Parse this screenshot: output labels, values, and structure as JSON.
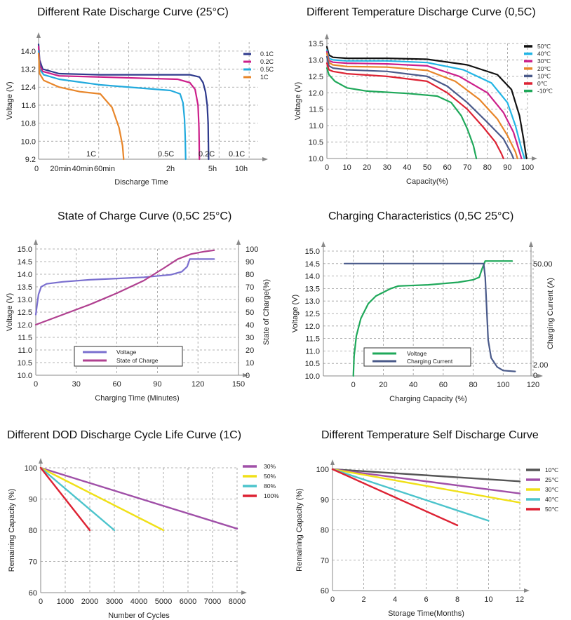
{
  "chart_data": [
    {
      "type": "line",
      "title": "Different Rate Discharge Curve (25°C)",
      "ylabel": "Voltage (V)",
      "xlabel": "Discharge Time",
      "ylim": [
        9.2,
        14.4
      ],
      "y_ticks": [
        "9.2",
        "10.0",
        "10.8",
        "11.6",
        "12.4",
        "13.2",
        "14.0"
      ],
      "x_tick_labels": [
        "0",
        "20min",
        "40min",
        "60min",
        "2h",
        "5h",
        "10h"
      ],
      "grid": true,
      "legend": "top-right",
      "series": [
        {
          "name": "0.1C",
          "color": "#2e3a8c",
          "end_label": "0.1C",
          "points": [
            [
              0,
              14.3
            ],
            [
              1,
              13.6
            ],
            [
              4,
              13.2
            ],
            [
              20,
              13.0
            ],
            [
              60,
              12.95
            ],
            [
              200,
              12.95
            ],
            [
              240,
              12.85
            ],
            [
              255,
              12.6
            ],
            [
              265,
              12.2
            ],
            [
              272,
              11.6
            ],
            [
              276,
              10.8
            ],
            [
              278,
              9.2
            ]
          ]
        },
        {
          "name": "0.2C",
          "color": "#cc1f8a",
          "end_label": "0.2C",
          "points": [
            [
              0,
              14.2
            ],
            [
              1,
              13.4
            ],
            [
              4,
              13.1
            ],
            [
              20,
              12.9
            ],
            [
              60,
              12.85
            ],
            [
              150,
              12.75
            ],
            [
              200,
              12.6
            ],
            [
              222,
              12.3
            ],
            [
              234,
              11.6
            ],
            [
              238,
              10.6
            ],
            [
              240,
              9.2
            ]
          ]
        },
        {
          "name": "0.5C",
          "color": "#22aadd",
          "end_label": "0.5C",
          "points": [
            [
              0,
              14.0
            ],
            [
              1,
              13.2
            ],
            [
              5,
              12.95
            ],
            [
              20,
              12.75
            ],
            [
              60,
              12.5
            ],
            [
              120,
              12.25
            ],
            [
              160,
              12.1
            ],
            [
              172,
              11.7
            ],
            [
              178,
              11.0
            ],
            [
              181,
              10.2
            ],
            [
              183,
              9.2
            ]
          ]
        },
        {
          "name": "1C",
          "color": "#e8862a",
          "end_label": "1C",
          "points": [
            [
              0,
              13.9
            ],
            [
              1,
              13.0
            ],
            [
              5,
              12.7
            ],
            [
              20,
              12.4
            ],
            [
              40,
              12.2
            ],
            [
              60,
              12.1
            ],
            [
              70,
              11.5
            ],
            [
              76,
              10.6
            ],
            [
              79,
              9.8
            ],
            [
              80,
              9.2
            ]
          ]
        }
      ]
    },
    {
      "type": "line",
      "title": "Different Temperature Discharge Curve (0,5C)",
      "ylabel": "Voltage (V)",
      "xlabel": "Capacity(%)",
      "xlim": [
        0,
        100
      ],
      "ylim": [
        10.0,
        13.5
      ],
      "x_ticks": [
        "0",
        "10",
        "20",
        "30",
        "40",
        "50",
        "60",
        "70",
        "80",
        "90",
        "100"
      ],
      "y_ticks": [
        "10.0",
        "10.5",
        "11.0",
        "11.5",
        "12.0",
        "12.5",
        "13.0",
        "13.5"
      ],
      "grid": true,
      "legend": "top-right",
      "series": [
        {
          "name": "50℃",
          "color": "#111111",
          "points": [
            [
              0,
              13.4
            ],
            [
              1,
              13.15
            ],
            [
              3,
              13.08
            ],
            [
              10,
              13.05
            ],
            [
              30,
              13.05
            ],
            [
              50,
              13.02
            ],
            [
              70,
              12.85
            ],
            [
              85,
              12.55
            ],
            [
              92,
              12.1
            ],
            [
              96,
              11.3
            ],
            [
              98,
              10.6
            ],
            [
              99.5,
              10.0
            ]
          ]
        },
        {
          "name": "40℃",
          "color": "#22b5e5",
          "points": [
            [
              0,
              13.3
            ],
            [
              1,
              13.05
            ],
            [
              3,
              13.0
            ],
            [
              10,
              12.97
            ],
            [
              30,
              12.97
            ],
            [
              50,
              12.92
            ],
            [
              68,
              12.7
            ],
            [
              82,
              12.3
            ],
            [
              90,
              11.7
            ],
            [
              94,
              11.0
            ],
            [
              97,
              10.3
            ],
            [
              98.5,
              10.0
            ]
          ]
        },
        {
          "name": "30℃",
          "color": "#cc1f8a",
          "points": [
            [
              0,
              13.25
            ],
            [
              1,
              12.98
            ],
            [
              3,
              12.93
            ],
            [
              10,
              12.9
            ],
            [
              30,
              12.88
            ],
            [
              50,
              12.82
            ],
            [
              66,
              12.5
            ],
            [
              80,
              12.0
            ],
            [
              88,
              11.4
            ],
            [
              93,
              10.8
            ],
            [
              96,
              10.2
            ],
            [
              97,
              10.0
            ]
          ]
        },
        {
          "name": "20℃",
          "color": "#e8862a",
          "points": [
            [
              0,
              13.2
            ],
            [
              1,
              12.92
            ],
            [
              3,
              12.85
            ],
            [
              10,
              12.8
            ],
            [
              30,
              12.78
            ],
            [
              50,
              12.68
            ],
            [
              64,
              12.35
            ],
            [
              76,
              11.8
            ],
            [
              85,
              11.2
            ],
            [
              90,
              10.7
            ],
            [
              94,
              10.2
            ],
            [
              95,
              10.0
            ]
          ]
        },
        {
          "name": "10℃",
          "color": "#4a5a8a",
          "points": [
            [
              0,
              13.1
            ],
            [
              1,
              12.82
            ],
            [
              3,
              12.75
            ],
            [
              10,
              12.7
            ],
            [
              30,
              12.65
            ],
            [
              50,
              12.5
            ],
            [
              60,
              12.2
            ],
            [
              70,
              11.7
            ],
            [
              80,
              11.1
            ],
            [
              88,
              10.6
            ],
            [
              92,
              10.15
            ],
            [
              93,
              10.0
            ]
          ]
        },
        {
          "name": "0℃",
          "color": "#dd2233",
          "points": [
            [
              0,
              12.9
            ],
            [
              1,
              12.7
            ],
            [
              3,
              12.65
            ],
            [
              10,
              12.58
            ],
            [
              30,
              12.5
            ],
            [
              50,
              12.35
            ],
            [
              60,
              12.0
            ],
            [
              70,
              11.5
            ],
            [
              78,
              10.95
            ],
            [
              84,
              10.5
            ],
            [
              87,
              10.15
            ],
            [
              88,
              10.0
            ]
          ]
        },
        {
          "name": "-10℃",
          "color": "#1fa85a",
          "points": [
            [
              0,
              12.75
            ],
            [
              1,
              12.55
            ],
            [
              4,
              12.35
            ],
            [
              10,
              12.15
            ],
            [
              20,
              12.05
            ],
            [
              40,
              11.98
            ],
            [
              55,
              11.9
            ],
            [
              62,
              11.7
            ],
            [
              67,
              11.3
            ],
            [
              70,
              10.9
            ],
            [
              73,
              10.4
            ],
            [
              74.5,
              10.0
            ]
          ]
        }
      ]
    },
    {
      "type": "line",
      "title": "State of Charge Curve (0,5C 25°C)",
      "ylabel": "Voltage (V)",
      "y2label": "State of Charge(%)",
      "xlabel": "Charging Time (Minutes)",
      "xlim": [
        0,
        150
      ],
      "ylim": [
        10.0,
        15.0
      ],
      "y2lim": [
        0,
        100
      ],
      "x_ticks": [
        "0",
        "30",
        "60",
        "90",
        "120",
        "150"
      ],
      "y_ticks": [
        "10.0",
        "10.5",
        "11.0",
        "11.5",
        "12.0",
        "12.5",
        "13.0",
        "13.5",
        "14.0",
        "14.5",
        "15.0"
      ],
      "y2_ticks": [
        "0",
        "10",
        "20",
        "30",
        "40",
        "50",
        "60",
        "70",
        "80",
        "90",
        "100"
      ],
      "grid": true,
      "legend": "bottom-center",
      "series": [
        {
          "name": "Voltage",
          "color": "#7a6fcf",
          "axis": "left",
          "points": [
            [
              0,
              12.4
            ],
            [
              1,
              12.8
            ],
            [
              2,
              13.2
            ],
            [
              4,
              13.5
            ],
            [
              8,
              13.62
            ],
            [
              20,
              13.7
            ],
            [
              40,
              13.78
            ],
            [
              60,
              13.83
            ],
            [
              80,
              13.88
            ],
            [
              100,
              13.98
            ],
            [
              108,
              14.1
            ],
            [
              112,
              14.3
            ],
            [
              114,
              14.6
            ],
            [
              132,
              14.6
            ]
          ]
        },
        {
          "name": "State of Charge",
          "color": "#b04090",
          "axis": "right",
          "points": [
            [
              0,
              40
            ],
            [
              20,
              48
            ],
            [
              40,
              56
            ],
            [
              60,
              65
            ],
            [
              80,
              75
            ],
            [
              95,
              85
            ],
            [
              105,
              92
            ],
            [
              115,
              96
            ],
            [
              125,
              98
            ],
            [
              132,
              99
            ]
          ]
        }
      ]
    },
    {
      "type": "line",
      "title": "Charging Characteristics (0,5C 25°C)",
      "ylabel": "Voltage (V)",
      "y2label": "Charging Current (A)",
      "xlabel": "Charging Capacity (%)",
      "xlim": [
        -20,
        120
      ],
      "ylim": [
        10.0,
        15.0
      ],
      "x_ticks": [
        "0",
        "20",
        "40",
        "60",
        "80",
        "100",
        "120"
      ],
      "y_ticks": [
        "10.0",
        "10.5",
        "11.0",
        "11.5",
        "12.0",
        "12.5",
        "13.0",
        "13.5",
        "14.0",
        "14.5",
        "15.0"
      ],
      "y2_ticks": [
        "50.00",
        "2.00",
        "0"
      ],
      "grid": true,
      "legend": "bottom-center",
      "series": [
        {
          "name": "Voltage",
          "color": "#1fa85a",
          "axis": "left",
          "points": [
            [
              0,
              10.0
            ],
            [
              0.5,
              10.8
            ],
            [
              2,
              11.6
            ],
            [
              5,
              12.3
            ],
            [
              10,
              12.9
            ],
            [
              15,
              13.2
            ],
            [
              25,
              13.5
            ],
            [
              30,
              13.6
            ],
            [
              50,
              13.65
            ],
            [
              70,
              13.75
            ],
            [
              80,
              13.85
            ],
            [
              84,
              13.95
            ],
            [
              86,
              14.3
            ],
            [
              88,
              14.6
            ],
            [
              106,
              14.6
            ]
          ]
        },
        {
          "name": "Charging Current",
          "color": "#4a5a8a",
          "axis": "right",
          "points": [
            [
              -6,
              50
            ],
            [
              87,
              50
            ],
            [
              88,
              44
            ],
            [
              89,
              30
            ],
            [
              90,
              16
            ],
            [
              92,
              8
            ],
            [
              96,
              4
            ],
            [
              100,
              2.4
            ],
            [
              108,
              2.0
            ]
          ]
        }
      ]
    },
    {
      "type": "line",
      "title": "Different DOD Discharge Cycle Life Curve (1C)",
      "ylabel": "Remaining Capacity (%)",
      "xlabel": "Number of Cycles",
      "xlim": [
        0,
        8000
      ],
      "ylim": [
        60,
        100
      ],
      "x_ticks": [
        "0",
        "1000",
        "2000",
        "3000",
        "4000",
        "5000",
        "6000",
        "7000",
        "8000"
      ],
      "y_ticks": [
        "60",
        "70",
        "80",
        "90",
        "100"
      ],
      "grid": true,
      "legend": "top-right",
      "series": [
        {
          "name": "30%",
          "color": "#a050a8",
          "points": [
            [
              0,
              100
            ],
            [
              8000,
              80.5
            ]
          ]
        },
        {
          "name": "50%",
          "color": "#f0e018",
          "points": [
            [
              0,
              100
            ],
            [
              5000,
              80
            ]
          ]
        },
        {
          "name": "80%",
          "color": "#4cc4cc",
          "points": [
            [
              0,
              100
            ],
            [
              3000,
              80
            ]
          ]
        },
        {
          "name": "100%",
          "color": "#dd2233",
          "points": [
            [
              0,
              100
            ],
            [
              2000,
              80
            ]
          ]
        }
      ]
    },
    {
      "type": "line",
      "title": "Different Temperature Self Discharge Curve",
      "ylabel": "Remaining Capacity (%)",
      "xlabel": "Storage Time(Months)",
      "xlim": [
        0,
        12
      ],
      "ylim": [
        60,
        100
      ],
      "x_ticks": [
        "0",
        "2",
        "4",
        "6",
        "8",
        "10",
        "12"
      ],
      "y_ticks": [
        "60",
        "70",
        "80",
        "90",
        "100"
      ],
      "grid": true,
      "legend": "top-right",
      "series": [
        {
          "name": "10℃",
          "color": "#555555",
          "points": [
            [
              0,
              100
            ],
            [
              12,
              96
            ]
          ]
        },
        {
          "name": "25℃",
          "color": "#a050a8",
          "points": [
            [
              0,
              100
            ],
            [
              12,
              92
            ]
          ]
        },
        {
          "name": "30℃",
          "color": "#f0e018",
          "points": [
            [
              0,
              100
            ],
            [
              12,
              89
            ]
          ]
        },
        {
          "name": "40℃",
          "color": "#4cc4cc",
          "points": [
            [
              0,
              100
            ],
            [
              10,
              83
            ]
          ]
        },
        {
          "name": "50℃",
          "color": "#dd2233",
          "points": [
            [
              0,
              100
            ],
            [
              8,
              81.5
            ]
          ]
        }
      ]
    }
  ]
}
